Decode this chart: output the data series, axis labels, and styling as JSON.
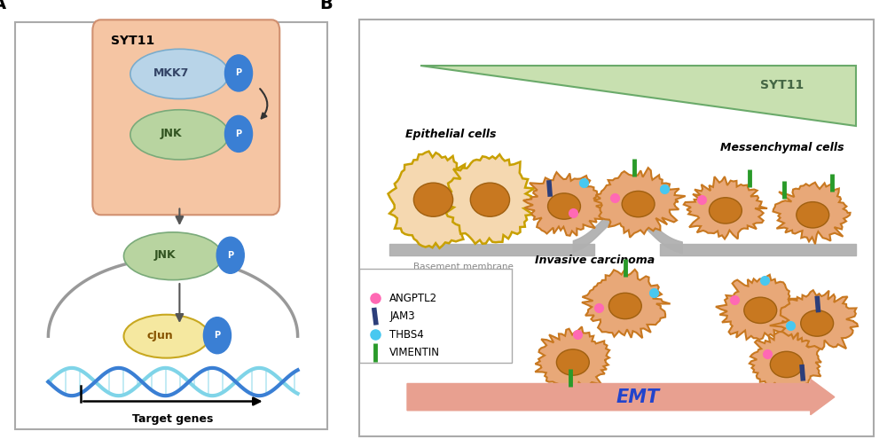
{
  "panel_A_label": "A",
  "panel_B_label": "B",
  "background_color": "#ffffff",
  "syt11_box_color": "#f5c5a3",
  "syt11_box_label": "SYT11",
  "mkk7_color": "#b8d4e8",
  "mkk7_label": "MKK7",
  "jnk_color": "#b8d4a0",
  "jnk_label": "JNK",
  "cjun_color": "#f5e8a0",
  "cjun_label": "cJun",
  "p_circle_color": "#3a7fd4",
  "p_text_color": "#ffffff",
  "dna_color1": "#7fd4e8",
  "dna_color2": "#3a7fd4",
  "arrow_color": "#555555",
  "target_genes_text": "Target genes",
  "epithelial_cells_label": "Epithelial cells",
  "messenchymal_cells_label": "Messenchymal cells",
  "invasive_carcinoma_label": "Invasive carcinoma",
  "basement_membrane_label": "Basement membrane",
  "syt11_triangle_label": "SYT11",
  "emt_label": "EMT",
  "cell_body_color": "#e8a878",
  "cell_nucleus_color": "#c87820",
  "cell_border_epithelial": "#c8a000",
  "cell_border_mesenchymal": "#c87820",
  "basement_color": "#b0b0b0",
  "angptl2_color": "#ff69b4",
  "jam3_color": "#2c3e7a",
  "thbs4_color": "#48c8f0",
  "vimentin_color": "#2a9a2a",
  "triangle_color": "#c8e0b0",
  "triangle_border": "#6aaa6a",
  "emt_arrow_color": "#e8a090",
  "legend_labels": [
    "ANGPTL2",
    "JAM3",
    "THBS4",
    "VIMENTIN"
  ]
}
